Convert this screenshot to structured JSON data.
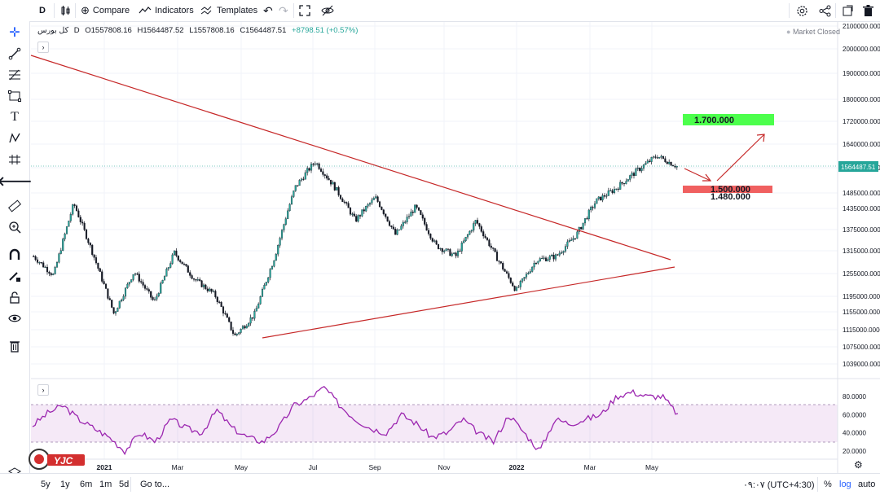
{
  "toolbar": {
    "interval": "D",
    "compare": "Compare",
    "indicators": "Indicators",
    "templates": "Templates"
  },
  "legend": {
    "symbol": "کل بورس",
    "interval": "D",
    "open": "O1557808.16",
    "high": "H1564487.52",
    "low": "L1557808.16",
    "close": "C1564487.51",
    "change": "+8798.51 (+0.57%)"
  },
  "status": "Market Closed",
  "price_labels": {
    "last": "1564487.51",
    "target_high": "1.700.000",
    "target_mid": "1.500.000",
    "target_low": "1.480.000"
  },
  "timeframes": [
    "5y",
    "1y",
    "6m",
    "1m",
    "5d"
  ],
  "goto": "Go to...",
  "clock": "۰۹:۰۷ (UTC+4:30)",
  "scale_opts": {
    "percent": "%",
    "log": "log",
    "auto": "auto"
  },
  "watermark": "YJC",
  "colors": {
    "up": "#26a69a",
    "down": "#ef5350",
    "candle": "#131722",
    "rsi": "#9c27b0",
    "trend": "#c62828"
  },
  "chart_data": [
    {
      "type": "candlestick",
      "title": "",
      "x_ticks": [
        "2021",
        "Mar",
        "May",
        "Jul",
        "Sep",
        "Nov",
        "2022",
        "Mar",
        "May"
      ],
      "y_ticks": [
        2100000,
        2000000,
        1900000,
        1800000,
        1720000,
        1640000,
        1560000,
        1485000,
        1435000,
        1375000,
        1315000,
        1255000,
        1195000,
        1155000,
        1115000,
        1075000,
        1039000
      ],
      "approx_close_path": [
        {
          "date": "2020-12",
          "value": 1300000
        },
        {
          "date": "2021-01",
          "value": 1250000
        },
        {
          "date": "2021-01",
          "value": 1450000
        },
        {
          "date": "2021-02",
          "value": 1300000
        },
        {
          "date": "2021-02",
          "value": 1150000
        },
        {
          "date": "2021-03",
          "value": 1260000
        },
        {
          "date": "2021-03",
          "value": 1180000
        },
        {
          "date": "2021-04",
          "value": 1310000
        },
        {
          "date": "2021-04",
          "value": 1240000
        },
        {
          "date": "2021-05",
          "value": 1200000
        },
        {
          "date": "2021-05",
          "value": 1100000
        },
        {
          "date": "2021-06",
          "value": 1150000
        },
        {
          "date": "2021-07",
          "value": 1300000
        },
        {
          "date": "2021-08",
          "value": 1500000
        },
        {
          "date": "2021-08",
          "value": 1580000
        },
        {
          "date": "2021-09",
          "value": 1500000
        },
        {
          "date": "2021-09",
          "value": 1400000
        },
        {
          "date": "2021-10",
          "value": 1470000
        },
        {
          "date": "2021-10",
          "value": 1360000
        },
        {
          "date": "2021-11",
          "value": 1440000
        },
        {
          "date": "2021-11",
          "value": 1330000
        },
        {
          "date": "2021-12",
          "value": 1300000
        },
        {
          "date": "2021-12",
          "value": 1400000
        },
        {
          "date": "2022-01",
          "value": 1300000
        },
        {
          "date": "2022-01",
          "value": 1210000
        },
        {
          "date": "2022-02",
          "value": 1290000
        },
        {
          "date": "2022-02",
          "value": 1300000
        },
        {
          "date": "2022-03",
          "value": 1360000
        },
        {
          "date": "2022-03",
          "value": 1460000
        },
        {
          "date": "2022-04",
          "value": 1500000
        },
        {
          "date": "2022-04",
          "value": 1550000
        },
        {
          "date": "2022-05",
          "value": 1600000
        },
        {
          "date": "2022-05",
          "value": 1564487
        }
      ]
    },
    {
      "type": "line",
      "title": "",
      "y_ticks": [
        80,
        60,
        40,
        20
      ],
      "band": [
        70,
        30
      ],
      "approx_values": [
        48,
        62,
        70,
        55,
        45,
        35,
        20,
        40,
        30,
        55,
        45,
        40,
        65,
        45,
        35,
        30,
        45,
        70,
        78,
        90,
        70,
        55,
        45,
        40,
        60,
        50,
        35,
        40,
        55,
        40,
        30,
        60,
        40,
        20,
        55,
        50,
        55,
        60,
        80,
        85,
        80,
        80,
        60
      ]
    }
  ]
}
